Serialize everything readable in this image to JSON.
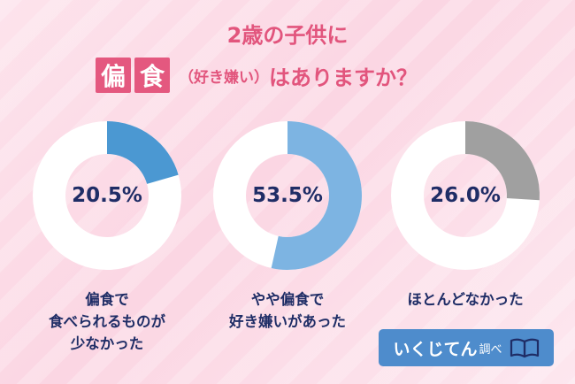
{
  "title": {
    "line1": "2歳の子供に",
    "kanji": [
      "偏",
      "食"
    ],
    "paren": "（好き嫌い）",
    "rest": "はありますか？"
  },
  "chart_data": {
    "type": "pie",
    "categories": [
      "偏食で食べられるものが少なかった",
      "やや偏食で好き嫌いがあった",
      "ほとんどなかった"
    ],
    "values": [
      20.5,
      53.5,
      26.0
    ],
    "charts": [
      {
        "value": 20.5,
        "value_label": "20.5%",
        "label_lines": [
          "偏食で",
          "食べられるものが",
          "少なかった"
        ],
        "color": "#4b98d2"
      },
      {
        "value": 53.5,
        "value_label": "53.5%",
        "label_lines": [
          "やや偏食で",
          "好き嫌いがあった"
        ],
        "color": "#7db4e2"
      },
      {
        "value": 26.0,
        "value_label": "26.0%",
        "label_lines": [
          "ほとんどなかった"
        ],
        "color": "#a0a0a0"
      }
    ],
    "remainder_color": "#ffffff"
  },
  "brand": {
    "name": "いくじてん",
    "sub": "調べ",
    "icon": "open-book-icon"
  }
}
